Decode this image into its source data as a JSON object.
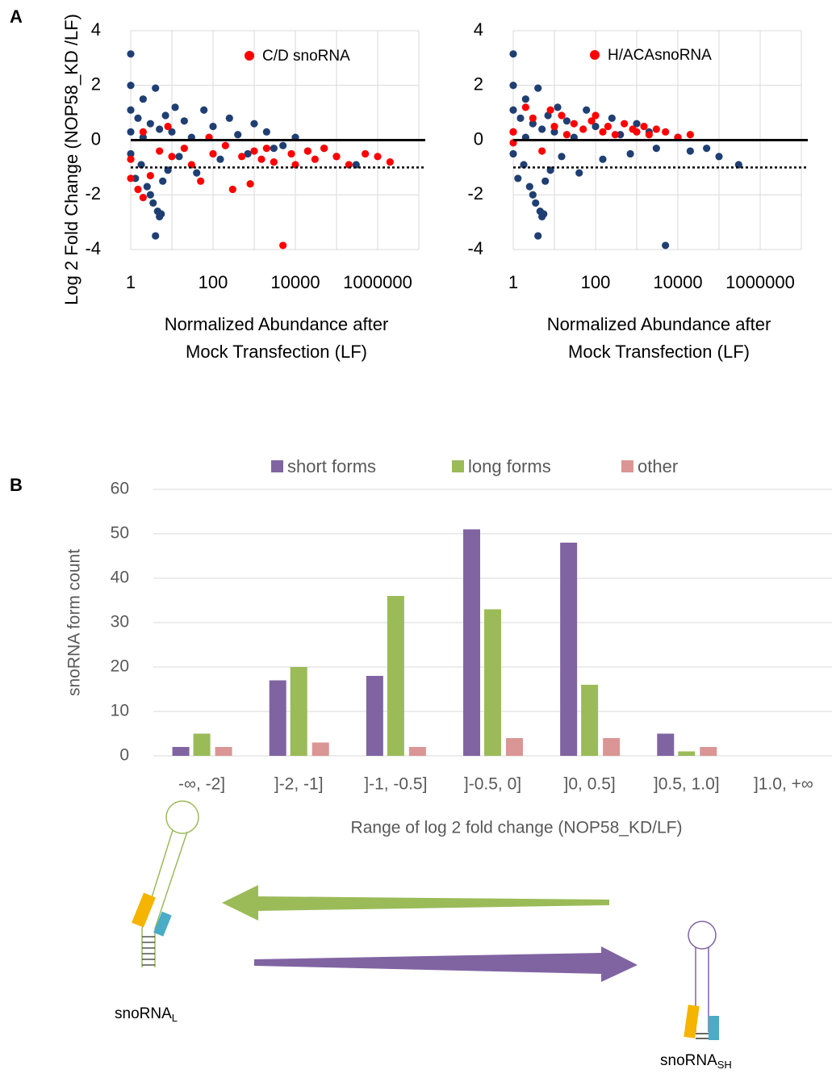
{
  "panel_labels": [
    "A",
    "B"
  ],
  "chart_data": [
    {
      "type": "scatter",
      "ylabel": "Log 2 Fold Change (NOP58_KD /LF)",
      "x_label": [
        "Normalized Abundance after",
        "Mock Transfection (LF)"
      ],
      "log_x": true,
      "grid": true,
      "legend": "top-center",
      "xlim": [
        1,
        10000000
      ],
      "xticks": [
        1,
        100,
        10000,
        1000000
      ],
      "xgrid": [
        1,
        10,
        100,
        1000,
        10000,
        100000,
        1000000,
        10000000
      ],
      "ylim": [
        -4,
        4
      ],
      "yticks": [
        -4,
        -2,
        0,
        2,
        4
      ],
      "hlines": [
        {
          "y": 0,
          "style": "solid"
        },
        {
          "y": -1,
          "style": "dotted"
        }
      ],
      "series": [
        {
          "color": "#1f3f73",
          "x": [
            1,
            1,
            1,
            1,
            1,
            1.3,
            1.5,
            1.8,
            2,
            2,
            2.5,
            3,
            3,
            3.5,
            4,
            4,
            4.5,
            5,
            5,
            5.5,
            6,
            7,
            8,
            10,
            12,
            15,
            20,
            30,
            40,
            60,
            100,
            150,
            250,
            400,
            700,
            1000,
            2000,
            3000,
            5000,
            10000,
            20000,
            50000,
            100000,
            300000
          ],
          "values": [
            3.15,
            2.0,
            1.1,
            0.3,
            -0.5,
            -1.4,
            0.8,
            -0.9,
            1.5,
            0.1,
            -1.7,
            -2.0,
            0.6,
            -2.3,
            -3.5,
            1.9,
            -2.6,
            -2.8,
            0.4,
            -2.7,
            -1.5,
            0.9,
            -1.1,
            0.3,
            1.2,
            -0.6,
            0.7,
            0.1,
            -1.2,
            1.1,
            0.5,
            -0.7,
            0.8,
            0.2,
            -0.5,
            0.6,
            0.3,
            -0.3,
            -0.2,
            0.1,
            -0.4,
            -0.3,
            -0.6,
            -0.9
          ]
        },
        {
          "name": "C/D snoRNA",
          "color": "#ff0000",
          "x": [
            1,
            1,
            1.5,
            2,
            2,
            3,
            5,
            8,
            10,
            20,
            30,
            50,
            80,
            100,
            200,
            300,
            500,
            800,
            1000,
            1500,
            2000,
            3000,
            5000,
            8000,
            10000,
            20000,
            30000,
            50000,
            100000,
            200000,
            500000,
            1000000,
            2000000
          ],
          "values": [
            -1.4,
            -0.7,
            -1.8,
            -2.1,
            0.3,
            -1.3,
            -0.4,
            0.5,
            -0.6,
            -0.3,
            -0.9,
            -1.5,
            0.1,
            -0.5,
            -0.2,
            -1.8,
            -0.6,
            -1.6,
            -0.4,
            -0.7,
            -0.3,
            -0.8,
            -3.85,
            -0.5,
            -0.9,
            -0.4,
            -0.7,
            -0.3,
            -0.6,
            -0.9,
            -0.5,
            -0.6,
            -0.8
          ]
        }
      ]
    },
    {
      "type": "scatter",
      "x_label": [
        "Normalized Abundance after",
        "Mock Transfection (LF)"
      ],
      "log_x": true,
      "grid": true,
      "legend": "top-center",
      "xlim": [
        1,
        10000000
      ],
      "xticks": [
        1,
        100,
        10000,
        1000000
      ],
      "xgrid": [
        1,
        10,
        100,
        1000,
        10000,
        100000,
        1000000,
        10000000
      ],
      "ylim": [
        -4,
        4
      ],
      "yticks": [
        -4,
        -2,
        0,
        2,
        4
      ],
      "hlines": [
        {
          "y": 0,
          "style": "solid"
        },
        {
          "y": -1,
          "style": "dotted"
        }
      ],
      "series": [
        {
          "color": "#1f3f73",
          "x": [
            1,
            1,
            1,
            1,
            1,
            1.3,
            1.5,
            1.8,
            2,
            2,
            2.5,
            3,
            3,
            3.5,
            4,
            4,
            4.5,
            5,
            5,
            5.5,
            6,
            7,
            8,
            10,
            12,
            15,
            20,
            30,
            40,
            60,
            100,
            150,
            250,
            400,
            700,
            1000,
            2000,
            3000,
            5000,
            10000,
            20000,
            50000,
            100000,
            300000
          ],
          "values": [
            3.15,
            2.0,
            1.1,
            0.3,
            -0.5,
            -1.4,
            0.8,
            -0.9,
            1.5,
            0.1,
            -1.7,
            -2.0,
            0.6,
            -2.3,
            -3.5,
            1.9,
            -2.6,
            -2.8,
            0.4,
            -2.7,
            -1.5,
            0.9,
            -1.1,
            0.3,
            1.2,
            -0.6,
            0.7,
            0.1,
            -1.2,
            1.1,
            0.5,
            -0.7,
            0.8,
            0.2,
            -0.5,
            0.6,
            0.3,
            -0.3,
            -3.85,
            0.1,
            -0.4,
            -0.3,
            -0.6,
            -0.9
          ]
        },
        {
          "name": "H/ACAsnoRNA",
          "color": "#ff0000",
          "x": [
            1,
            1,
            2,
            3,
            5,
            8,
            10,
            15,
            20,
            30,
            50,
            80,
            100,
            150,
            200,
            300,
            500,
            800,
            1000,
            1500,
            2000,
            3000,
            5000,
            10000,
            20000
          ],
          "values": [
            0.3,
            -0.1,
            1.2,
            0.8,
            -0.4,
            1.1,
            0.5,
            0.9,
            0.2,
            0.6,
            0.4,
            0.7,
            0.9,
            0.3,
            0.5,
            0.2,
            0.6,
            0.4,
            0.3,
            0.5,
            0.2,
            0.4,
            0.3,
            0.1,
            0.2
          ]
        }
      ]
    },
    {
      "type": "bar",
      "ylabel": "snoRNA form count",
      "xlabel": "Range of log 2 fold change (NOP58_KD/LF)",
      "grid": true,
      "legend": "top",
      "categories": [
        "-∞, -2]",
        "]-2, -1]",
        "]-1, -0.5]",
        "]-0.5, 0]",
        "]0, 0.5]",
        "]0.5, 1.0]",
        "]1.0, +∞"
      ],
      "ylim": [
        0,
        60
      ],
      "yticks": [
        0,
        10,
        20,
        30,
        40,
        50,
        60
      ],
      "series": [
        {
          "name": "short forms",
          "color": "#8064a2",
          "values": [
            2,
            17,
            18,
            51,
            48,
            5,
            0
          ]
        },
        {
          "name": "long forms",
          "color": "#9bbb59",
          "values": [
            5,
            20,
            36,
            33,
            16,
            1,
            0
          ]
        },
        {
          "name": "other",
          "color": "#d99694",
          "values": [
            2,
            3,
            2,
            4,
            4,
            2,
            0
          ]
        }
      ]
    }
  ],
  "diagram": {
    "labels": [
      {
        "text": "snoRNA",
        "subscript": "L"
      },
      {
        "text": "snoRNA",
        "subscript": "SH"
      }
    ]
  }
}
